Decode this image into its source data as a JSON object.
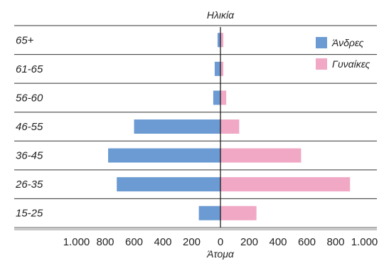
{
  "chart_data": {
    "type": "bar",
    "orientation": "horizontal",
    "layout": "population-pyramid",
    "ytitle": "Ηλικία",
    "xlabel": "Άτομα",
    "categories": [
      "65+",
      "61-65",
      "56-60",
      "46-55",
      "36-45",
      "26-35",
      "15-25"
    ],
    "series": [
      {
        "name": "Άνδρες",
        "side": "left",
        "color": "#6b9bd2",
        "values": [
          20,
          40,
          50,
          600,
          780,
          720,
          150
        ]
      },
      {
        "name": "Γυναίκες",
        "side": "right",
        "color": "#f0a8c4",
        "values": [
          20,
          20,
          40,
          130,
          560,
          900,
          250
        ]
      }
    ],
    "xlim": [
      -1000,
      1000
    ],
    "ticks": [
      -1000,
      -800,
      -600,
      -400,
      -200,
      0,
      200,
      400,
      600,
      800,
      1000
    ],
    "tick_labels": [
      "1.000",
      "800",
      "600",
      "400",
      "200",
      "0",
      "200",
      "400",
      "600",
      "800",
      "1.000"
    ],
    "legend_position": "top-right",
    "grid": "horizontal row separators"
  }
}
